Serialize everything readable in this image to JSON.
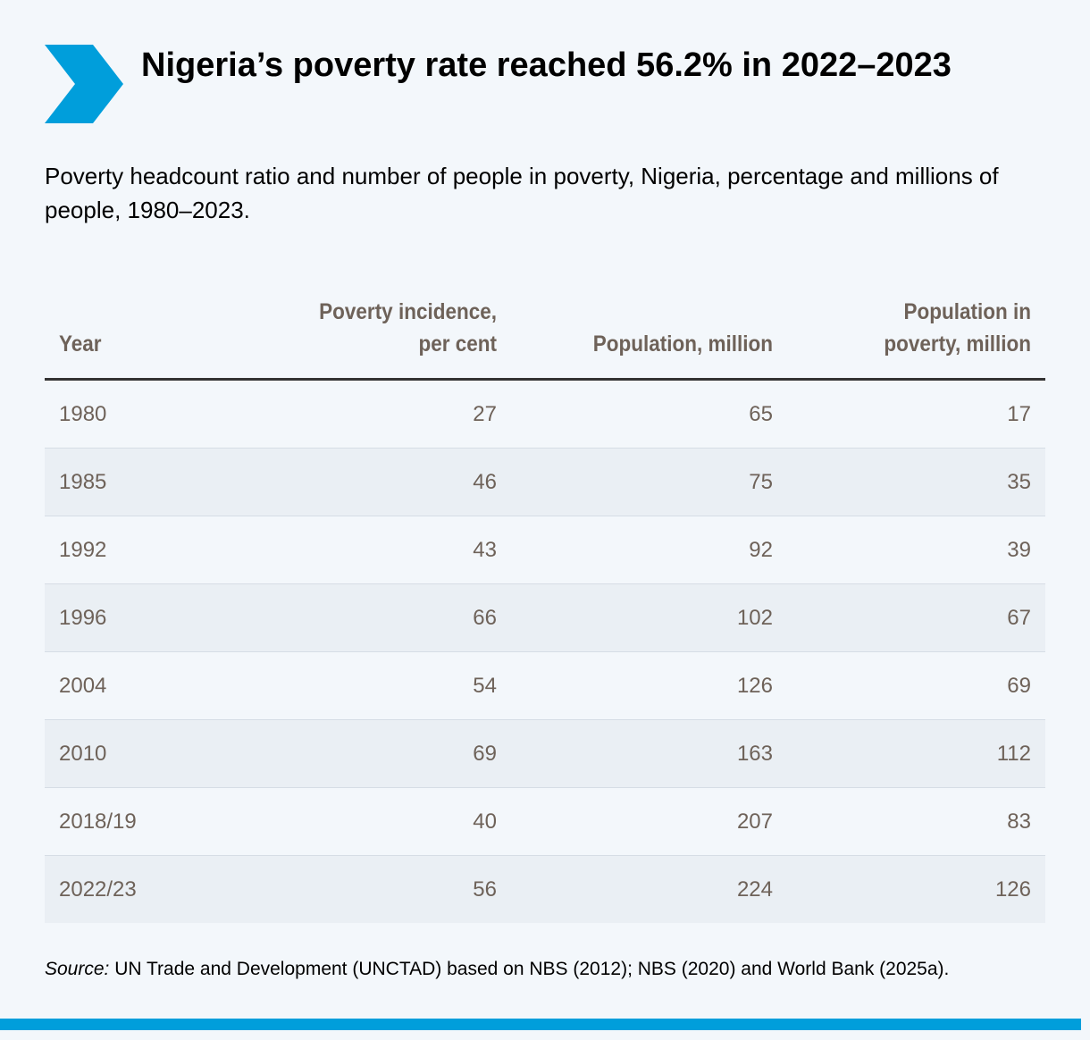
{
  "header": {
    "title": "Nigeria’s poverty rate reached 56.2% in 2022–2023",
    "subtitle": "Poverty headcount ratio and number of people in poverty, Nigeria, percentage and millions of people, 1980–2023.",
    "icon": "chevron-right-icon",
    "accent_color": "#009edb"
  },
  "chart_data": {
    "type": "table",
    "columns": [
      "Year",
      "Poverty incidence, per cent",
      "Population, million",
      "Population in poverty, million"
    ],
    "rows": [
      [
        "1980",
        "27",
        "65",
        "17"
      ],
      [
        "1985",
        "46",
        "75",
        "35"
      ],
      [
        "1992",
        "43",
        "92",
        "39"
      ],
      [
        "1996",
        "66",
        "102",
        "67"
      ],
      [
        "2004",
        "54",
        "126",
        "69"
      ],
      [
        "2010",
        "69",
        "163",
        "112"
      ],
      [
        "2018/19",
        "40",
        "207",
        "83"
      ],
      [
        "2022/23",
        "56",
        "224",
        "126"
      ]
    ]
  },
  "source": {
    "label": "Source:",
    "text": " UN Trade and Development (UNCTAD) based on NBS (2012); NBS (2020) and World Bank (2025a)."
  }
}
